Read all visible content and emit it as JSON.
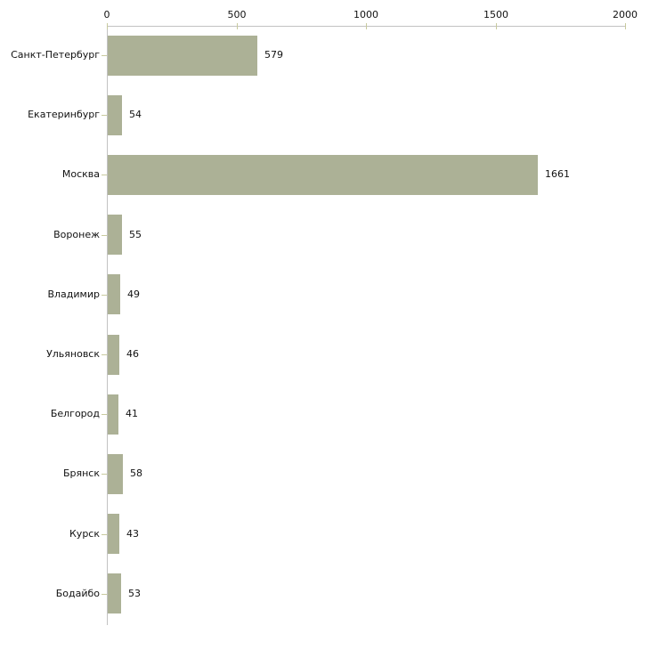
{
  "chart_data": {
    "type": "bar",
    "orientation": "horizontal",
    "title": "",
    "xlabel": "",
    "ylabel": "",
    "categories": [
      "Санкт-Петербург",
      "Екатеринбург",
      "Москва",
      "Воронеж",
      "Владимир",
      "Ульяновск",
      "Белгород",
      "Брянск",
      "Курск",
      "Бодайбо"
    ],
    "values": [
      579,
      54,
      1661,
      55,
      49,
      46,
      41,
      58,
      43,
      53
    ],
    "x_ticks": [
      "0",
      "500",
      "1000",
      "1500",
      "2000"
    ],
    "x_tick_values": [
      0,
      500,
      1000,
      1500,
      2000
    ],
    "xlim": [
      0,
      2000
    ],
    "axis_position": "top",
    "grid": false,
    "legend": false,
    "colors": {
      "bar": "#acb196",
      "tick": "#c8ca9e",
      "axis": "#c2c2c2",
      "text": "#111111",
      "background": "#ffffff"
    }
  }
}
